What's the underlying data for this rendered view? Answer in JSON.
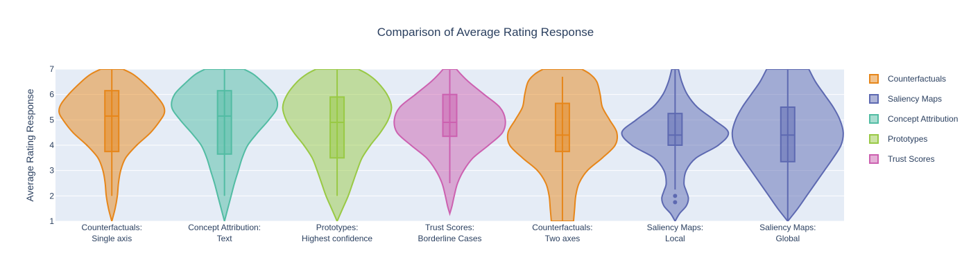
{
  "chart_data": {
    "type": "violin",
    "title": "Comparison of Average Rating Response",
    "xlabel": "",
    "ylabel": "Average Rating Response",
    "ylim": [
      1,
      7
    ],
    "yticks": [
      1,
      2,
      3,
      4,
      5,
      6,
      7
    ],
    "grid": true,
    "legend_placement": "right",
    "categories": [
      [
        "Counterfactuals:",
        "Single axis"
      ],
      [
        "Concept Attribution:",
        "Text"
      ],
      [
        "Prototypes:",
        "Highest confidence"
      ],
      [
        "Trust Scores:",
        "Borderline Cases"
      ],
      [
        "Counterfactuals:",
        "Two axes"
      ],
      [
        "Saliency Maps:",
        "Local"
      ],
      [
        "Saliency Maps:",
        "Global"
      ]
    ],
    "legend": [
      {
        "name": "Counterfactuals",
        "color": "#e6861a"
      },
      {
        "name": "Saliency Maps",
        "color": "#5d69b1"
      },
      {
        "name": "Concept Attribution",
        "color": "#52bca3"
      },
      {
        "name": "Prototypes",
        "color": "#99c945"
      },
      {
        "name": "Trust Scores",
        "color": "#cc61b0"
      }
    ],
    "violins": [
      {
        "category": 0,
        "series": "Counterfactuals",
        "color": "#e6861a",
        "box": {
          "q1": 3.75,
          "median": 5.15,
          "q3": 6.15,
          "whisker_low": 2.0,
          "whisker_high": 7.0
        },
        "outliers": [],
        "density": [
          [
            1.0,
            0.0
          ],
          [
            1.5,
            0.06
          ],
          [
            2.0,
            0.1
          ],
          [
            2.5,
            0.12
          ],
          [
            3.0,
            0.16
          ],
          [
            3.5,
            0.25
          ],
          [
            4.0,
            0.45
          ],
          [
            4.5,
            0.7
          ],
          [
            5.0,
            0.88
          ],
          [
            5.3,
            0.95
          ],
          [
            5.6,
            0.92
          ],
          [
            6.0,
            0.78
          ],
          [
            6.5,
            0.55
          ],
          [
            6.8,
            0.38
          ],
          [
            7.0,
            0.2
          ]
        ]
      },
      {
        "category": 1,
        "series": "Concept Attribution",
        "color": "#52bca3",
        "box": {
          "q1": 3.65,
          "median": 5.15,
          "q3": 6.15,
          "whisker_low": 2.0,
          "whisker_high": 7.0
        },
        "outliers": [],
        "density": [
          [
            1.0,
            0.0
          ],
          [
            1.5,
            0.06
          ],
          [
            2.0,
            0.12
          ],
          [
            2.5,
            0.18
          ],
          [
            3.0,
            0.25
          ],
          [
            3.5,
            0.32
          ],
          [
            4.0,
            0.42
          ],
          [
            4.5,
            0.6
          ],
          [
            5.0,
            0.8
          ],
          [
            5.5,
            0.95
          ],
          [
            6.0,
            0.9
          ],
          [
            6.5,
            0.68
          ],
          [
            6.8,
            0.52
          ],
          [
            7.0,
            0.35
          ]
        ]
      },
      {
        "category": 2,
        "series": "Prototypes",
        "color": "#99c945",
        "box": {
          "q1": 3.5,
          "median": 4.9,
          "q3": 5.9,
          "whisker_low": 2.0,
          "whisker_high": 7.0
        },
        "outliers": [],
        "density": [
          [
            1.0,
            0.0
          ],
          [
            1.5,
            0.1
          ],
          [
            2.0,
            0.2
          ],
          [
            2.5,
            0.28
          ],
          [
            3.0,
            0.36
          ],
          [
            3.5,
            0.45
          ],
          [
            4.0,
            0.6
          ],
          [
            4.5,
            0.78
          ],
          [
            5.0,
            0.92
          ],
          [
            5.5,
            0.98
          ],
          [
            6.0,
            0.9
          ],
          [
            6.5,
            0.72
          ],
          [
            6.8,
            0.55
          ],
          [
            7.0,
            0.38
          ]
        ]
      },
      {
        "category": 3,
        "series": "Trust Scores",
        "color": "#cc61b0",
        "box": {
          "q1": 4.35,
          "median": 4.9,
          "q3": 6.0,
          "whisker_low": 2.5,
          "whisker_high": 7.0
        },
        "outliers": [],
        "density": [
          [
            1.3,
            0.0
          ],
          [
            1.6,
            0.04
          ],
          [
            2.0,
            0.08
          ],
          [
            2.5,
            0.14
          ],
          [
            3.0,
            0.25
          ],
          [
            3.5,
            0.42
          ],
          [
            4.0,
            0.7
          ],
          [
            4.5,
            0.95
          ],
          [
            5.0,
            1.0
          ],
          [
            5.5,
            0.9
          ],
          [
            6.0,
            0.62
          ],
          [
            6.5,
            0.34
          ],
          [
            6.8,
            0.2
          ],
          [
            7.0,
            0.12
          ]
        ]
      },
      {
        "category": 4,
        "series": "Counterfactuals",
        "color": "#e6861a",
        "box": {
          "q1": 3.75,
          "median": 4.4,
          "q3": 5.65,
          "whisker_low": 1.0,
          "whisker_high": 6.7
        },
        "outliers": [],
        "density": [
          [
            1.0,
            0.2
          ],
          [
            1.5,
            0.22
          ],
          [
            2.0,
            0.24
          ],
          [
            2.5,
            0.3
          ],
          [
            3.0,
            0.45
          ],
          [
            3.5,
            0.72
          ],
          [
            4.0,
            0.95
          ],
          [
            4.5,
            0.98
          ],
          [
            5.0,
            0.85
          ],
          [
            5.5,
            0.72
          ],
          [
            6.0,
            0.68
          ],
          [
            6.5,
            0.62
          ],
          [
            6.8,
            0.5
          ],
          [
            7.0,
            0.35
          ]
        ]
      },
      {
        "category": 5,
        "series": "Saliency Maps",
        "color": "#5d69b1",
        "box": {
          "q1": 4.0,
          "median": 4.4,
          "q3": 5.25,
          "whisker_low": 2.25,
          "whisker_high": 7.0
        },
        "outliers": [
          2.0,
          1.75
        ],
        "density": [
          [
            1.0,
            0.0
          ],
          [
            1.3,
            0.08
          ],
          [
            1.6,
            0.2
          ],
          [
            1.9,
            0.24
          ],
          [
            2.2,
            0.2
          ],
          [
            2.5,
            0.16
          ],
          [
            3.0,
            0.2
          ],
          [
            3.5,
            0.38
          ],
          [
            4.0,
            0.78
          ],
          [
            4.5,
            0.96
          ],
          [
            5.0,
            0.7
          ],
          [
            5.5,
            0.4
          ],
          [
            6.0,
            0.22
          ],
          [
            6.5,
            0.12
          ],
          [
            7.0,
            0.06
          ]
        ]
      },
      {
        "category": 6,
        "series": "Saliency Maps",
        "color": "#5d69b1",
        "box": {
          "q1": 3.35,
          "median": 4.4,
          "q3": 5.5,
          "whisker_low": 1.0,
          "whisker_high": 7.0
        },
        "outliers": [],
        "density": [
          [
            1.0,
            0.0
          ],
          [
            1.5,
            0.18
          ],
          [
            2.0,
            0.34
          ],
          [
            2.5,
            0.5
          ],
          [
            3.0,
            0.66
          ],
          [
            3.5,
            0.82
          ],
          [
            4.0,
            0.96
          ],
          [
            4.5,
            1.0
          ],
          [
            5.0,
            0.94
          ],
          [
            5.5,
            0.82
          ],
          [
            6.0,
            0.66
          ],
          [
            6.5,
            0.5
          ],
          [
            7.0,
            0.38
          ]
        ]
      }
    ]
  }
}
